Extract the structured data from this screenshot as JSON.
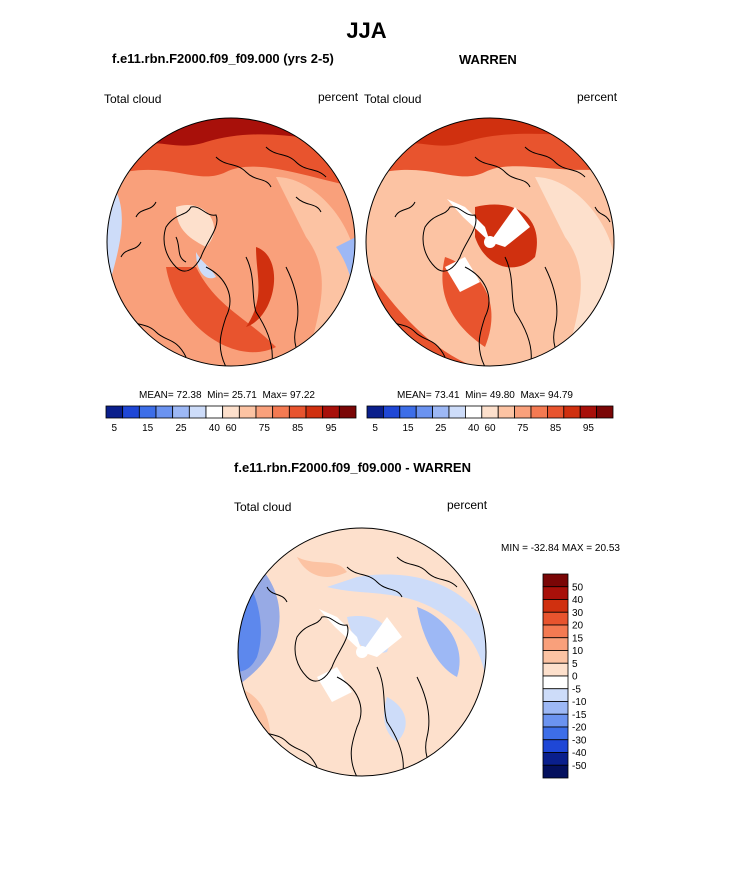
{
  "figure": {
    "title": "JJA",
    "panel_left": {
      "title": "f.e11.rbn.F2000.f09_f09.000 (yrs 2-5)",
      "variable": "Total cloud",
      "units": "percent",
      "stats": {
        "mean_label": "MEAN=",
        "mean": "72.38",
        "min_label": "Min=",
        "min": "25.71",
        "max_label": "Max=",
        "max": "97.22"
      }
    },
    "panel_right": {
      "title": "WARREN",
      "variable": "Total cloud",
      "units": "percent",
      "stats": {
        "mean_label": "MEAN=",
        "mean": "73.41",
        "min_label": "Min=",
        "min": "49.80",
        "max_label": "Max=",
        "max": "94.79"
      }
    },
    "panel_diff": {
      "title": "f.e11.rbn.F2000.f09_f09.000 - WARREN",
      "variable": "Total cloud",
      "units": "percent",
      "minmax_text": "MIN = -32.84 MAX =  20.53"
    }
  },
  "colorbar_abs": {
    "colors": [
      "#0a1f8c",
      "#1f47d6",
      "#3d6ee8",
      "#6b93f0",
      "#9db8f5",
      "#cddcf9",
      "#ffffff",
      "#fde0cc",
      "#fcc3a3",
      "#f9a07b",
      "#f47a52",
      "#e8542e",
      "#d0300f",
      "#a8100a",
      "#7a0606"
    ],
    "tick_labels": [
      "5",
      "15",
      "25",
      "40",
      "60",
      "75",
      "85",
      "95"
    ]
  },
  "colorbar_diff": {
    "colors": [
      "#7a0606",
      "#a8100a",
      "#d0300f",
      "#e8542e",
      "#f47a52",
      "#f9a07b",
      "#fcc3a3",
      "#fde0cc",
      "#ffffff",
      "#cddcf9",
      "#9db8f5",
      "#6b93f0",
      "#3d6ee8",
      "#1f47d6",
      "#0a1f8c",
      "#04105e"
    ],
    "tick_labels": [
      "50",
      "40",
      "30",
      "20",
      "15",
      "10",
      "5",
      "0",
      "-5",
      "-10",
      "-15",
      "-20",
      "-30",
      "-40",
      "-50"
    ]
  },
  "colors": {
    "land_outline": "#000000",
    "missing": "#ffffff",
    "abs_high": "#d0300f",
    "abs_mid": "#f47a52",
    "abs_low": "#fcc3a3",
    "diff_pos": "#fcc3a3",
    "diff_neg": "#9db8f5"
  }
}
